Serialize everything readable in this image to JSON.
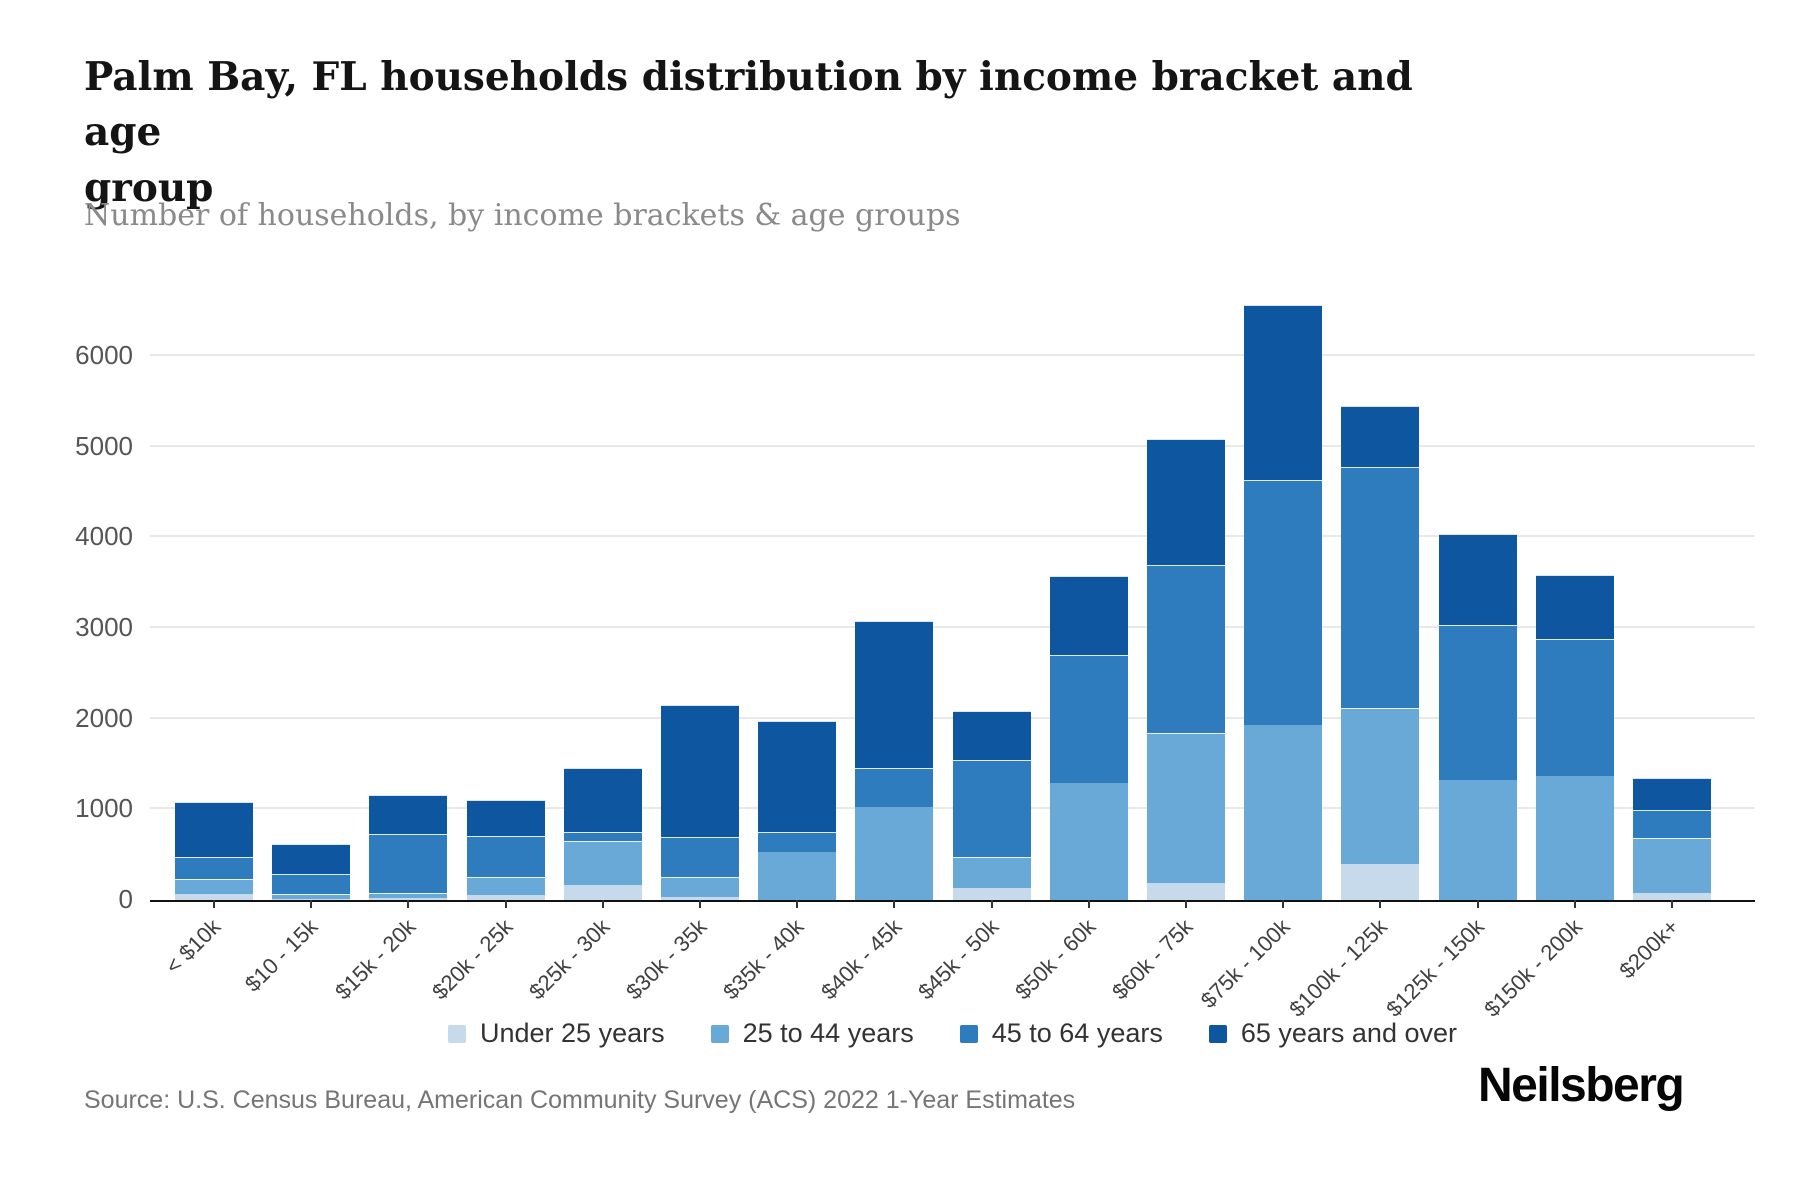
{
  "title_lines": [
    "Palm Bay, FL households distribution by income bracket and age",
    "group"
  ],
  "subtitle": "Number of households, by income brackets & age groups",
  "source": "Source: U.S. Census Bureau, American Community Survey (ACS) 2022 1-Year Estimates",
  "logo": "Neilsberg",
  "y_axis": {
    "tick_values": [
      0,
      1000,
      2000,
      3000,
      4000,
      5000,
      6000
    ]
  },
  "chart_data": {
    "type": "bar",
    "stacked": true,
    "title": "Palm Bay, FL households distribution by income bracket and age group",
    "xlabel": "",
    "ylabel": "Number of households",
    "ylim": [
      0,
      6600
    ],
    "grid": true,
    "legend_position": "bottom",
    "categories": [
      "< $10k",
      "$10 - 15k",
      "$15k - 20k",
      "$20k - 25k",
      "$25k - 30k",
      "$30k - 35k",
      "$35k - 40k",
      "$40k - 45k",
      "$45k - 50k",
      "$50k - 60k",
      "$60k - 75k",
      "$75k - 100k",
      "$100k - 125k",
      "$125k - 150k",
      "$150k - 200k",
      "$200k+"
    ],
    "series": [
      {
        "name": "Under 25 years",
        "color": "#c6daec",
        "values": [
          70,
          10,
          25,
          55,
          165,
          30,
          0,
          0,
          130,
          0,
          190,
          0,
          400,
          0,
          0,
          80
        ]
      },
      {
        "name": "25 to 44 years",
        "color": "#69a9d7",
        "values": [
          165,
          55,
          50,
          200,
          485,
          225,
          530,
          1030,
          345,
          1290,
          1650,
          1930,
          1720,
          1320,
          1370,
          600
        ]
      },
      {
        "name": "45 to 64 years",
        "color": "#2e7cbd",
        "values": [
          245,
          220,
          650,
          450,
          100,
          440,
          225,
          430,
          1070,
          1410,
          1855,
          2700,
          2660,
          1710,
          1510,
          310
        ]
      },
      {
        "name": "65 years and over",
        "color": "#0e57a0",
        "values": [
          600,
          335,
          430,
          395,
          710,
          1455,
          1225,
          1620,
          545,
          870,
          1390,
          1930,
          670,
          1010,
          700,
          360
        ]
      }
    ]
  }
}
